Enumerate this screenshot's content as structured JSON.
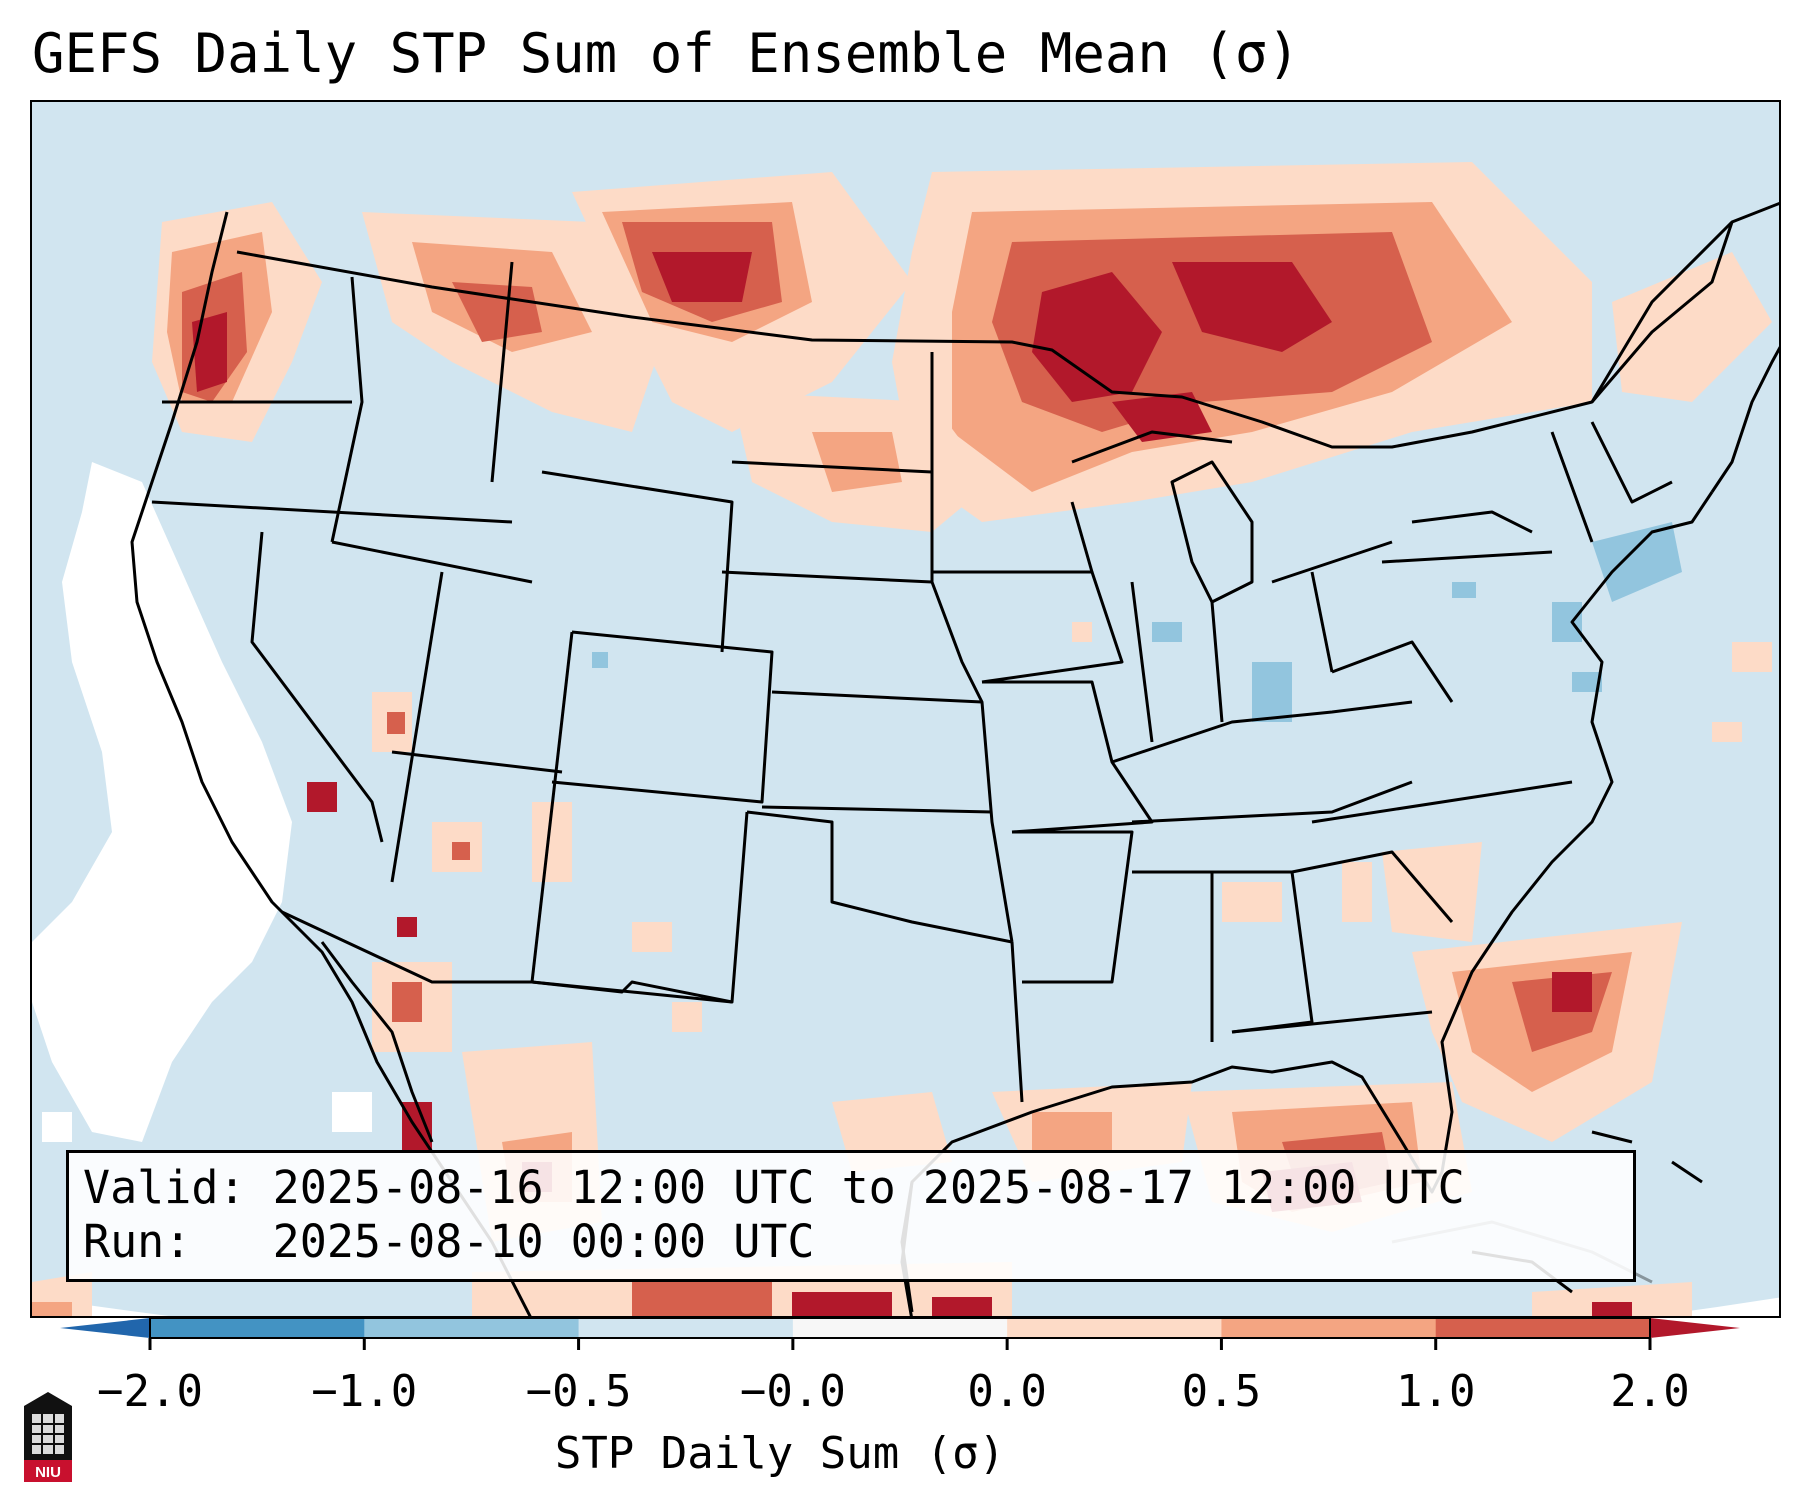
{
  "title": "GEFS Daily STP Sum of Ensemble Mean (σ)",
  "info": {
    "valid_line": "Valid: 2025-08-16 12:00 UTC to 2025-08-17 12:00 UTC",
    "run_line": "Run:   2025-08-10 00:00 UTC"
  },
  "colorbar": {
    "label": "STP Daily Sum (σ)",
    "ticks": [
      "−2.0",
      "−1.0",
      "−0.5",
      "−0.0",
      "0.0",
      "0.5",
      "1.0",
      "2.0"
    ],
    "bins": [
      {
        "from": -2.0,
        "to": -1.0,
        "color": "#4393c3"
      },
      {
        "from": -1.0,
        "to": -0.5,
        "color": "#92c5de"
      },
      {
        "from": -0.5,
        "to": -0.0,
        "color": "#d1e5f0"
      },
      {
        "from": -0.0,
        "to": 0.0,
        "color": "#f7f7f7"
      },
      {
        "from": 0.0,
        "to": 0.5,
        "color": "#fddbc7"
      },
      {
        "from": 0.5,
        "to": 1.0,
        "color": "#f4a582"
      },
      {
        "from": 1.0,
        "to": 2.0,
        "color": "#d6604d"
      }
    ],
    "extend_low_color": "#2166ac",
    "extend_high_color": "#b2182b"
  },
  "logo": {
    "text": "NIU"
  },
  "colors": {
    "background_field": "#d1e5f0",
    "white_field": "#ffffff",
    "weak_positive": "#fddbc7",
    "moderate_positive": "#f4a582",
    "strong_positive": "#d6604d",
    "extreme_positive": "#b2182b",
    "weak_negative": "#92c5de"
  },
  "map": {
    "projection": "Lambert Conformal (CONUS)",
    "features": [
      "coastlines",
      "state-borders",
      "country-borders"
    ]
  }
}
